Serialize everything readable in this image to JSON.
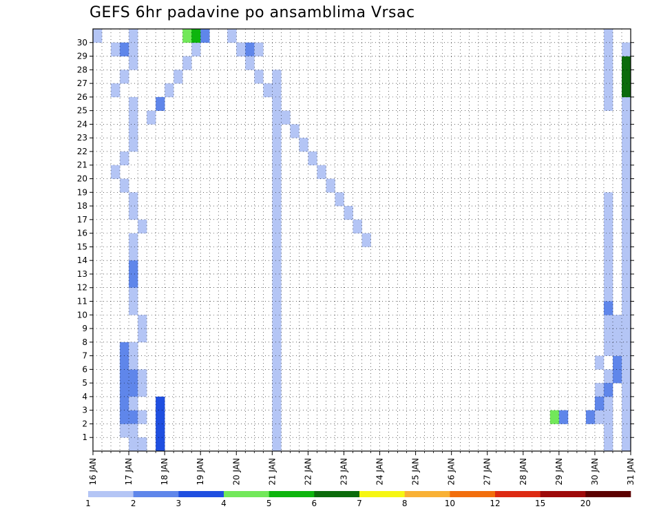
{
  "chart_data": {
    "type": "heatmap",
    "title": "GEFS 6hr padavine po ansamblima Vrsac",
    "x_tick_labels": [
      "16 JAN",
      "17 JAN",
      "18 JAN",
      "19 JAN",
      "20 JAN",
      "21 JAN",
      "22 JAN",
      "23 JAN",
      "24 JAN",
      "25 JAN",
      "26 JAN",
      "27 JAN",
      "28 JAN",
      "29 JAN",
      "30 JAN",
      "31 JAN"
    ],
    "y_tick_labels": [
      "1",
      "2",
      "3",
      "4",
      "5",
      "6",
      "7",
      "8",
      "9",
      "10",
      "11",
      "12",
      "13",
      "14",
      "15",
      "16",
      "17",
      "18",
      "19",
      "20",
      "21",
      "22",
      "23",
      "24",
      "25",
      "26",
      "27",
      "28",
      "29",
      "30"
    ],
    "x_range_days": [
      16,
      31
    ],
    "steps_per_day": 4,
    "members": 31,
    "grid": true,
    "colorbar": {
      "levels": [
        "1",
        "2",
        "3",
        "4",
        "5",
        "6",
        "7",
        "8",
        "10",
        "12",
        "15",
        "20"
      ],
      "colors": [
        "#b4c5f5",
        "#5f86ea",
        "#1f4fe0",
        "#72e85a",
        "#0db50d",
        "#0b6b0b",
        "#f6f612",
        "#f9b135",
        "#f26e0c",
        "#dd2a12",
        "#9e0a0a",
        "#5c0000"
      ],
      "placement": "bottom"
    },
    "cells": [
      [
        0,
        4,
        1
      ],
      [
        0,
        5,
        1
      ],
      [
        1,
        3,
        1
      ],
      [
        1,
        4,
        1
      ],
      [
        2,
        3,
        2
      ],
      [
        2,
        4,
        2
      ],
      [
        3,
        3,
        2
      ],
      [
        3,
        4,
        2
      ],
      [
        4,
        3,
        2
      ],
      [
        4,
        4,
        2
      ],
      [
        5,
        3,
        2
      ],
      [
        5,
        4,
        2
      ],
      [
        6,
        3,
        2
      ],
      [
        6,
        4,
        2
      ],
      [
        7,
        3,
        2
      ],
      [
        7,
        4,
        2
      ],
      [
        0,
        7,
        3
      ],
      [
        1,
        7,
        3
      ],
      [
        2,
        7,
        3
      ],
      [
        3,
        7,
        3
      ],
      [
        29,
        2,
        1
      ],
      [
        29,
        3,
        2
      ],
      [
        29,
        4,
        1
      ],
      [
        30,
        0,
        1
      ],
      [
        30,
        4,
        1
      ],
      [
        31,
        0,
        1
      ],
      [
        31,
        4,
        1
      ],
      [
        28,
        4,
        1
      ],
      [
        27,
        3,
        1
      ],
      [
        26,
        2,
        1
      ],
      [
        25,
        4,
        1
      ],
      [
        24,
        4,
        1
      ],
      [
        23,
        4,
        1
      ],
      [
        22,
        4,
        1
      ],
      [
        21,
        3,
        1
      ],
      [
        20,
        2,
        1
      ],
      [
        19,
        3,
        1
      ],
      [
        18,
        4,
        1
      ],
      [
        17,
        4,
        1
      ],
      [
        16,
        5,
        1
      ],
      [
        15,
        4,
        1
      ],
      [
        14,
        4,
        1
      ],
      [
        13,
        4,
        2
      ],
      [
        12,
        4,
        2
      ],
      [
        11,
        4,
        1
      ],
      [
        10,
        4,
        1
      ],
      [
        9,
        5,
        1
      ],
      [
        8,
        5,
        1
      ],
      [
        7,
        4,
        1
      ],
      [
        6,
        4,
        1
      ],
      [
        5,
        5,
        1
      ],
      [
        4,
        5,
        1
      ],
      [
        3,
        4,
        1
      ],
      [
        2,
        5,
        1
      ],
      [
        1,
        4,
        1
      ],
      [
        0,
        5,
        1
      ],
      [
        24,
        6,
        1
      ],
      [
        25,
        7,
        2
      ],
      [
        26,
        8,
        1
      ],
      [
        27,
        9,
        1
      ],
      [
        28,
        10,
        1
      ],
      [
        29,
        11,
        1
      ],
      [
        30,
        12,
        1
      ],
      [
        31,
        13,
        1
      ],
      [
        30,
        15,
        1
      ],
      [
        29,
        16,
        1
      ],
      [
        28,
        17,
        1
      ],
      [
        27,
        18,
        1
      ],
      [
        26,
        19,
        1
      ],
      [
        25,
        20,
        1
      ],
      [
        24,
        21,
        1
      ],
      [
        23,
        22,
        1
      ],
      [
        22,
        23,
        1
      ],
      [
        21,
        24,
        1
      ],
      [
        20,
        25,
        1
      ],
      [
        19,
        26,
        1
      ],
      [
        18,
        27,
        1
      ],
      [
        17,
        28,
        1
      ],
      [
        16,
        29,
        1
      ],
      [
        15,
        30,
        1
      ]
    ],
    "cells_b": [
      [
        2,
        51,
        4
      ],
      [
        2,
        52,
        2
      ],
      [
        2,
        55,
        2
      ],
      [
        2,
        56,
        1
      ],
      [
        3,
        57,
        1
      ],
      [
        6,
        56,
        1
      ],
      [
        5,
        57,
        1
      ],
      [
        4,
        56,
        1
      ],
      [
        7,
        57,
        1
      ],
      [
        8,
        57,
        1
      ],
      [
        9,
        57,
        1
      ],
      [
        10,
        57,
        1
      ],
      [
        11,
        57,
        1
      ],
      [
        12,
        57,
        1
      ],
      [
        13,
        57,
        1
      ],
      [
        14,
        57,
        1
      ],
      [
        15,
        57,
        1
      ],
      [
        16,
        57,
        1
      ],
      [
        17,
        57,
        1
      ],
      [
        18,
        57,
        1
      ],
      [
        25,
        57,
        1
      ],
      [
        26,
        57,
        1
      ],
      [
        27,
        57,
        1
      ],
      [
        28,
        57,
        1
      ],
      [
        29,
        57,
        1
      ],
      [
        30,
        57,
        1
      ],
      [
        31,
        57,
        1
      ],
      [
        2,
        59,
        3
      ],
      [
        2,
        60,
        5
      ],
      [
        2,
        61,
        9
      ],
      [
        3,
        56,
        2
      ],
      [
        3,
        61,
        2
      ],
      [
        3,
        62,
        2
      ],
      [
        4,
        57,
        2
      ],
      [
        4,
        61,
        1
      ],
      [
        5,
        58,
        2
      ],
      [
        6,
        58,
        2
      ],
      [
        7,
        58,
        1
      ],
      [
        8,
        58,
        1
      ],
      [
        9,
        58,
        1
      ]
    ],
    "cells_c": [
      [
        15,
        57,
        1
      ],
      [
        14,
        57,
        1
      ],
      [
        9,
        58,
        1
      ],
      [
        10,
        57,
        2
      ],
      [
        8,
        57,
        1
      ],
      [
        2,
        57,
        1
      ],
      [
        1,
        57,
        1
      ],
      [
        0,
        57,
        1
      ],
      [
        29,
        59,
        1
      ],
      [
        28,
        59,
        1
      ],
      [
        27,
        59,
        1
      ],
      [
        26,
        59,
        1
      ],
      [
        25,
        59,
        1
      ],
      [
        24,
        59,
        1
      ],
      [
        23,
        59,
        1
      ],
      [
        22,
        59,
        1
      ],
      [
        21,
        59,
        1
      ],
      [
        20,
        59,
        1
      ],
      [
        19,
        59,
        1
      ],
      [
        18,
        59,
        1
      ],
      [
        17,
        59,
        1
      ],
      [
        16,
        59,
        1
      ],
      [
        15,
        59,
        1
      ],
      [
        14,
        59,
        1
      ],
      [
        13,
        59,
        1
      ],
      [
        12,
        59,
        1
      ],
      [
        11,
        59,
        1
      ],
      [
        10,
        59,
        1
      ],
      [
        9,
        59,
        1
      ],
      [
        8,
        59,
        1
      ],
      [
        7,
        59,
        1
      ],
      [
        6,
        59,
        1
      ],
      [
        5,
        59,
        1
      ],
      [
        4,
        59,
        1
      ],
      [
        3,
        59,
        1
      ],
      [
        2,
        59,
        1
      ],
      [
        1,
        59,
        1
      ],
      [
        0,
        59,
        1
      ]
    ],
    "cells_d": [
      [
        26,
        59,
        6
      ],
      [
        27,
        59,
        6
      ],
      [
        28,
        59,
        6
      ],
      [
        29,
        59,
        1
      ],
      [
        27,
        60,
        1
      ],
      [
        28,
        60,
        1
      ],
      [
        28,
        61,
        2
      ],
      [
        27,
        61,
        2
      ],
      [
        27,
        62,
        2
      ],
      [
        26,
        60,
        1
      ],
      [
        25,
        60,
        1
      ],
      [
        24,
        59,
        1
      ],
      [
        23,
        59,
        1
      ],
      [
        22,
        59,
        1
      ],
      [
        21,
        60,
        1
      ],
      [
        20,
        59,
        1
      ],
      [
        19,
        59,
        1
      ],
      [
        18,
        59,
        1
      ],
      [
        17,
        59,
        1
      ],
      [
        16,
        59,
        1
      ]
    ],
    "cells_e": [
      [
        30,
        15,
        1
      ],
      [
        30,
        10,
        4
      ],
      [
        30,
        11,
        5
      ],
      [
        30,
        12,
        2
      ],
      [
        29,
        16,
        1
      ],
      [
        29,
        17,
        2
      ],
      [
        29,
        18,
        1
      ],
      [
        28,
        17,
        1
      ],
      [
        27,
        20,
        1
      ],
      [
        26,
        20,
        1
      ],
      [
        25,
        20,
        1
      ],
      [
        24,
        20,
        1
      ],
      [
        23,
        20,
        1
      ],
      [
        22,
        20,
        1
      ],
      [
        21,
        20,
        1
      ],
      [
        20,
        20,
        1
      ],
      [
        19,
        20,
        1
      ],
      [
        18,
        20,
        1
      ],
      [
        17,
        20,
        1
      ],
      [
        16,
        20,
        1
      ],
      [
        15,
        20,
        1
      ],
      [
        14,
        20,
        1
      ],
      [
        13,
        20,
        1
      ],
      [
        12,
        20,
        1
      ],
      [
        11,
        20,
        1
      ],
      [
        10,
        20,
        1
      ],
      [
        9,
        20,
        1
      ],
      [
        8,
        20,
        1
      ],
      [
        7,
        20,
        1
      ],
      [
        6,
        20,
        1
      ],
      [
        5,
        20,
        1
      ],
      [
        4,
        20,
        1
      ],
      [
        3,
        20,
        1
      ],
      [
        2,
        20,
        1
      ],
      [
        1,
        20,
        1
      ],
      [
        0,
        20,
        1
      ]
    ]
  }
}
